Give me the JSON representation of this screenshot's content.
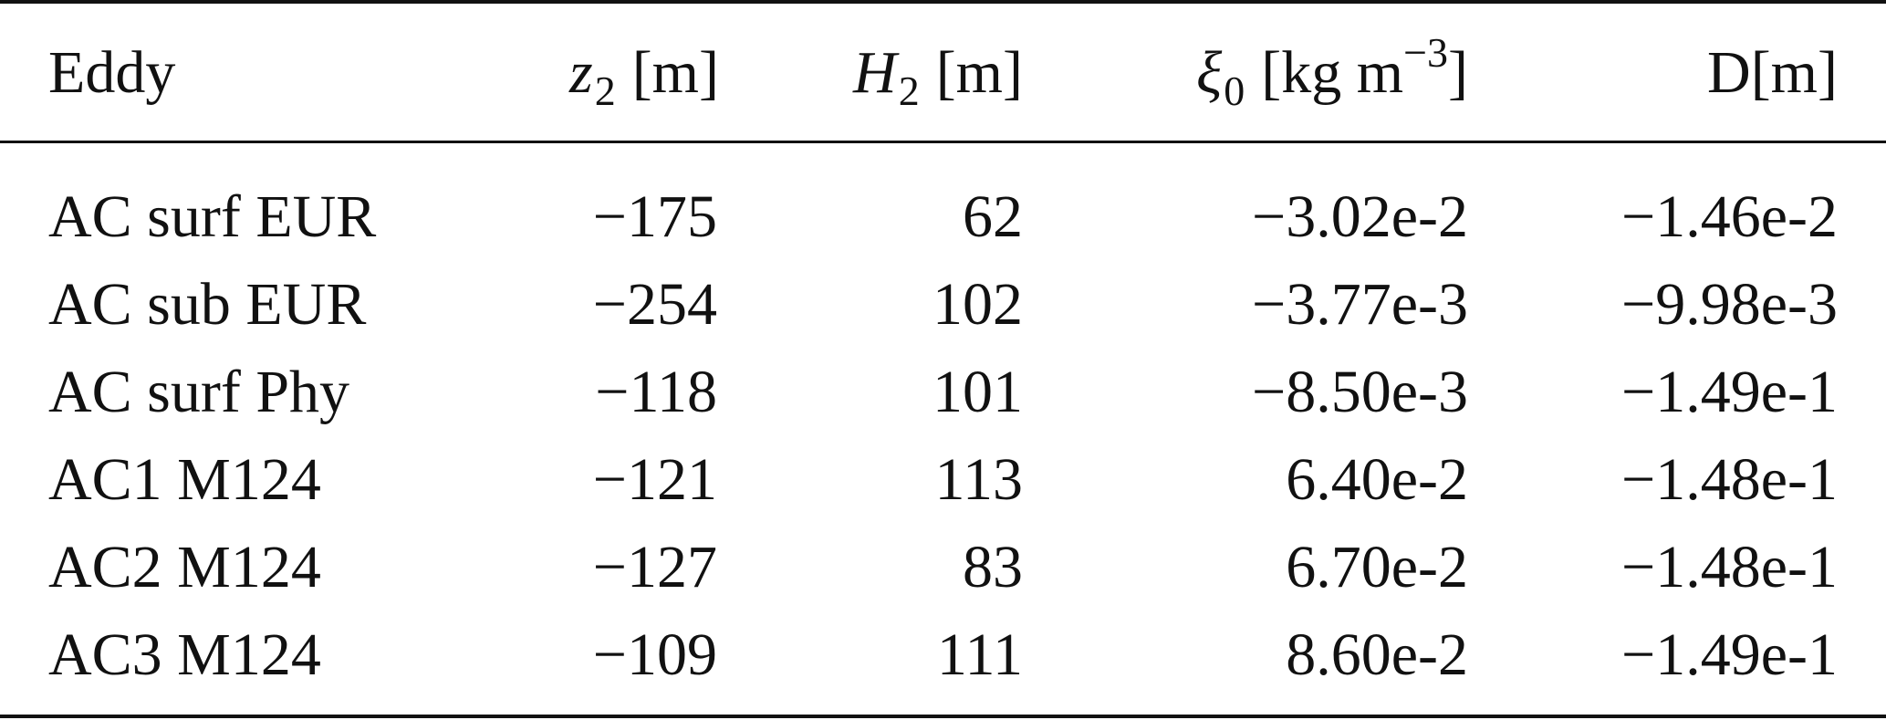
{
  "table": {
    "headers": {
      "eddy": "Eddy",
      "z2_symbol": "z",
      "z2_sub": "2",
      "z2_unit": "[m]",
      "h2_symbol": "H",
      "h2_sub": "2",
      "h2_unit": "[m]",
      "xi_symbol": "ξ",
      "xi_sub": "0",
      "xi_unit_open": "[kg m",
      "xi_unit_sup": "−3",
      "xi_unit_close": "]",
      "d": "D[m]"
    },
    "rows": [
      {
        "eddy": "AC surf EUR",
        "z2": "−175",
        "h2": "62",
        "xi0": "−3.02e-2",
        "d": "−1.46e-2"
      },
      {
        "eddy": "AC sub EUR",
        "z2": "−254",
        "h2": "102",
        "xi0": "−3.77e-3",
        "d": "−9.98e-3"
      },
      {
        "eddy": "AC surf Phy",
        "z2": "−118",
        "h2": "101",
        "xi0": "−8.50e-3",
        "d": "−1.49e-1"
      },
      {
        "eddy": "AC1 M124",
        "z2": "−121",
        "h2": "113",
        "xi0": "6.40e-2",
        "d": "−1.48e-1"
      },
      {
        "eddy": "AC2 M124",
        "z2": "−127",
        "h2": "83",
        "xi0": "6.70e-2",
        "d": "−1.48e-1"
      },
      {
        "eddy": "AC3 M124",
        "z2": "−109",
        "h2": "111",
        "xi0": "8.60e-2",
        "d": "−1.49e-1"
      }
    ]
  }
}
